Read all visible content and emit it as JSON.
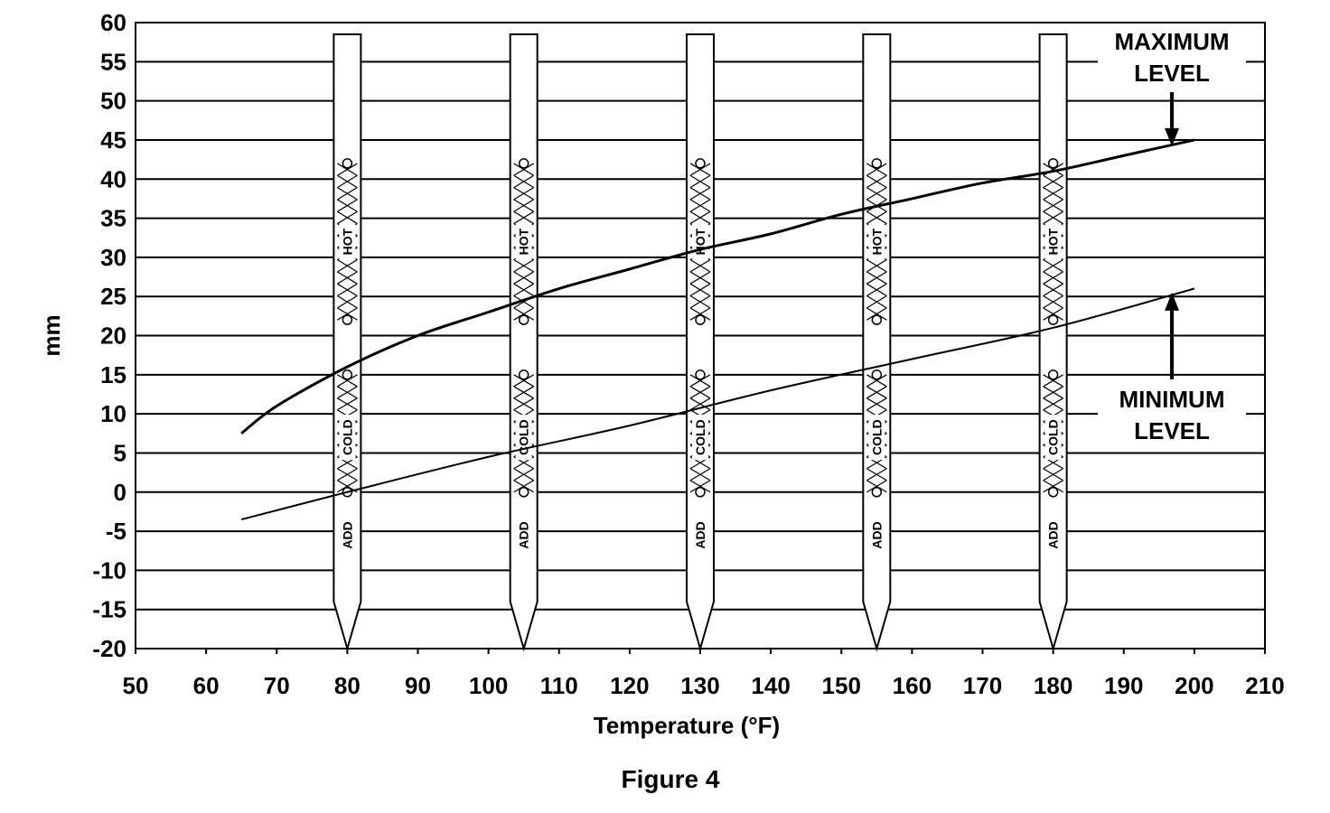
{
  "chart_data": {
    "type": "line",
    "title": "",
    "caption": "Figure 4",
    "xlabel": "Temperature (°F)",
    "ylabel": "mm",
    "xlim": [
      50,
      210
    ],
    "ylim": [
      -20,
      60
    ],
    "x_ticks": [
      50,
      60,
      70,
      80,
      90,
      100,
      110,
      120,
      130,
      140,
      150,
      160,
      170,
      180,
      190,
      200,
      210
    ],
    "y_ticks": [
      60,
      55,
      50,
      45,
      40,
      35,
      30,
      25,
      20,
      15,
      10,
      5,
      0,
      -5,
      -10,
      -15,
      -20
    ],
    "grid": "horizontal",
    "series": [
      {
        "name": "MAXIMUM LEVEL",
        "label_lines": [
          "MAXIMUM",
          "LEVEL"
        ],
        "x": [
          65,
          70,
          80,
          90,
          100,
          110,
          120,
          130,
          140,
          150,
          160,
          170,
          180,
          190,
          200
        ],
        "y": [
          7.5,
          11,
          16,
          20,
          23,
          26,
          28.5,
          31,
          33,
          35.5,
          37.5,
          39.5,
          41,
          43,
          45
        ]
      },
      {
        "name": "MINIMUM LEVEL",
        "label_lines": [
          "MINIMUM",
          "LEVEL"
        ],
        "x": [
          65,
          80,
          100,
          120,
          140,
          160,
          180,
          200
        ],
        "y": [
          -3.5,
          0,
          4.5,
          8.5,
          13,
          17,
          21,
          26
        ]
      }
    ],
    "dipsticks": [
      {
        "temperature": 80,
        "labels": [
          "ADD",
          "COLD",
          "HOT"
        ]
      },
      {
        "temperature": 105,
        "labels": [
          "ADD",
          "COLD",
          "HOT"
        ]
      },
      {
        "temperature": 130,
        "labels": [
          "ADD",
          "COLD",
          "HOT"
        ]
      },
      {
        "temperature": 155,
        "labels": [
          "ADD",
          "COLD",
          "HOT"
        ]
      },
      {
        "temperature": 180,
        "labels": [
          "ADD",
          "COLD",
          "HOT"
        ]
      }
    ]
  }
}
